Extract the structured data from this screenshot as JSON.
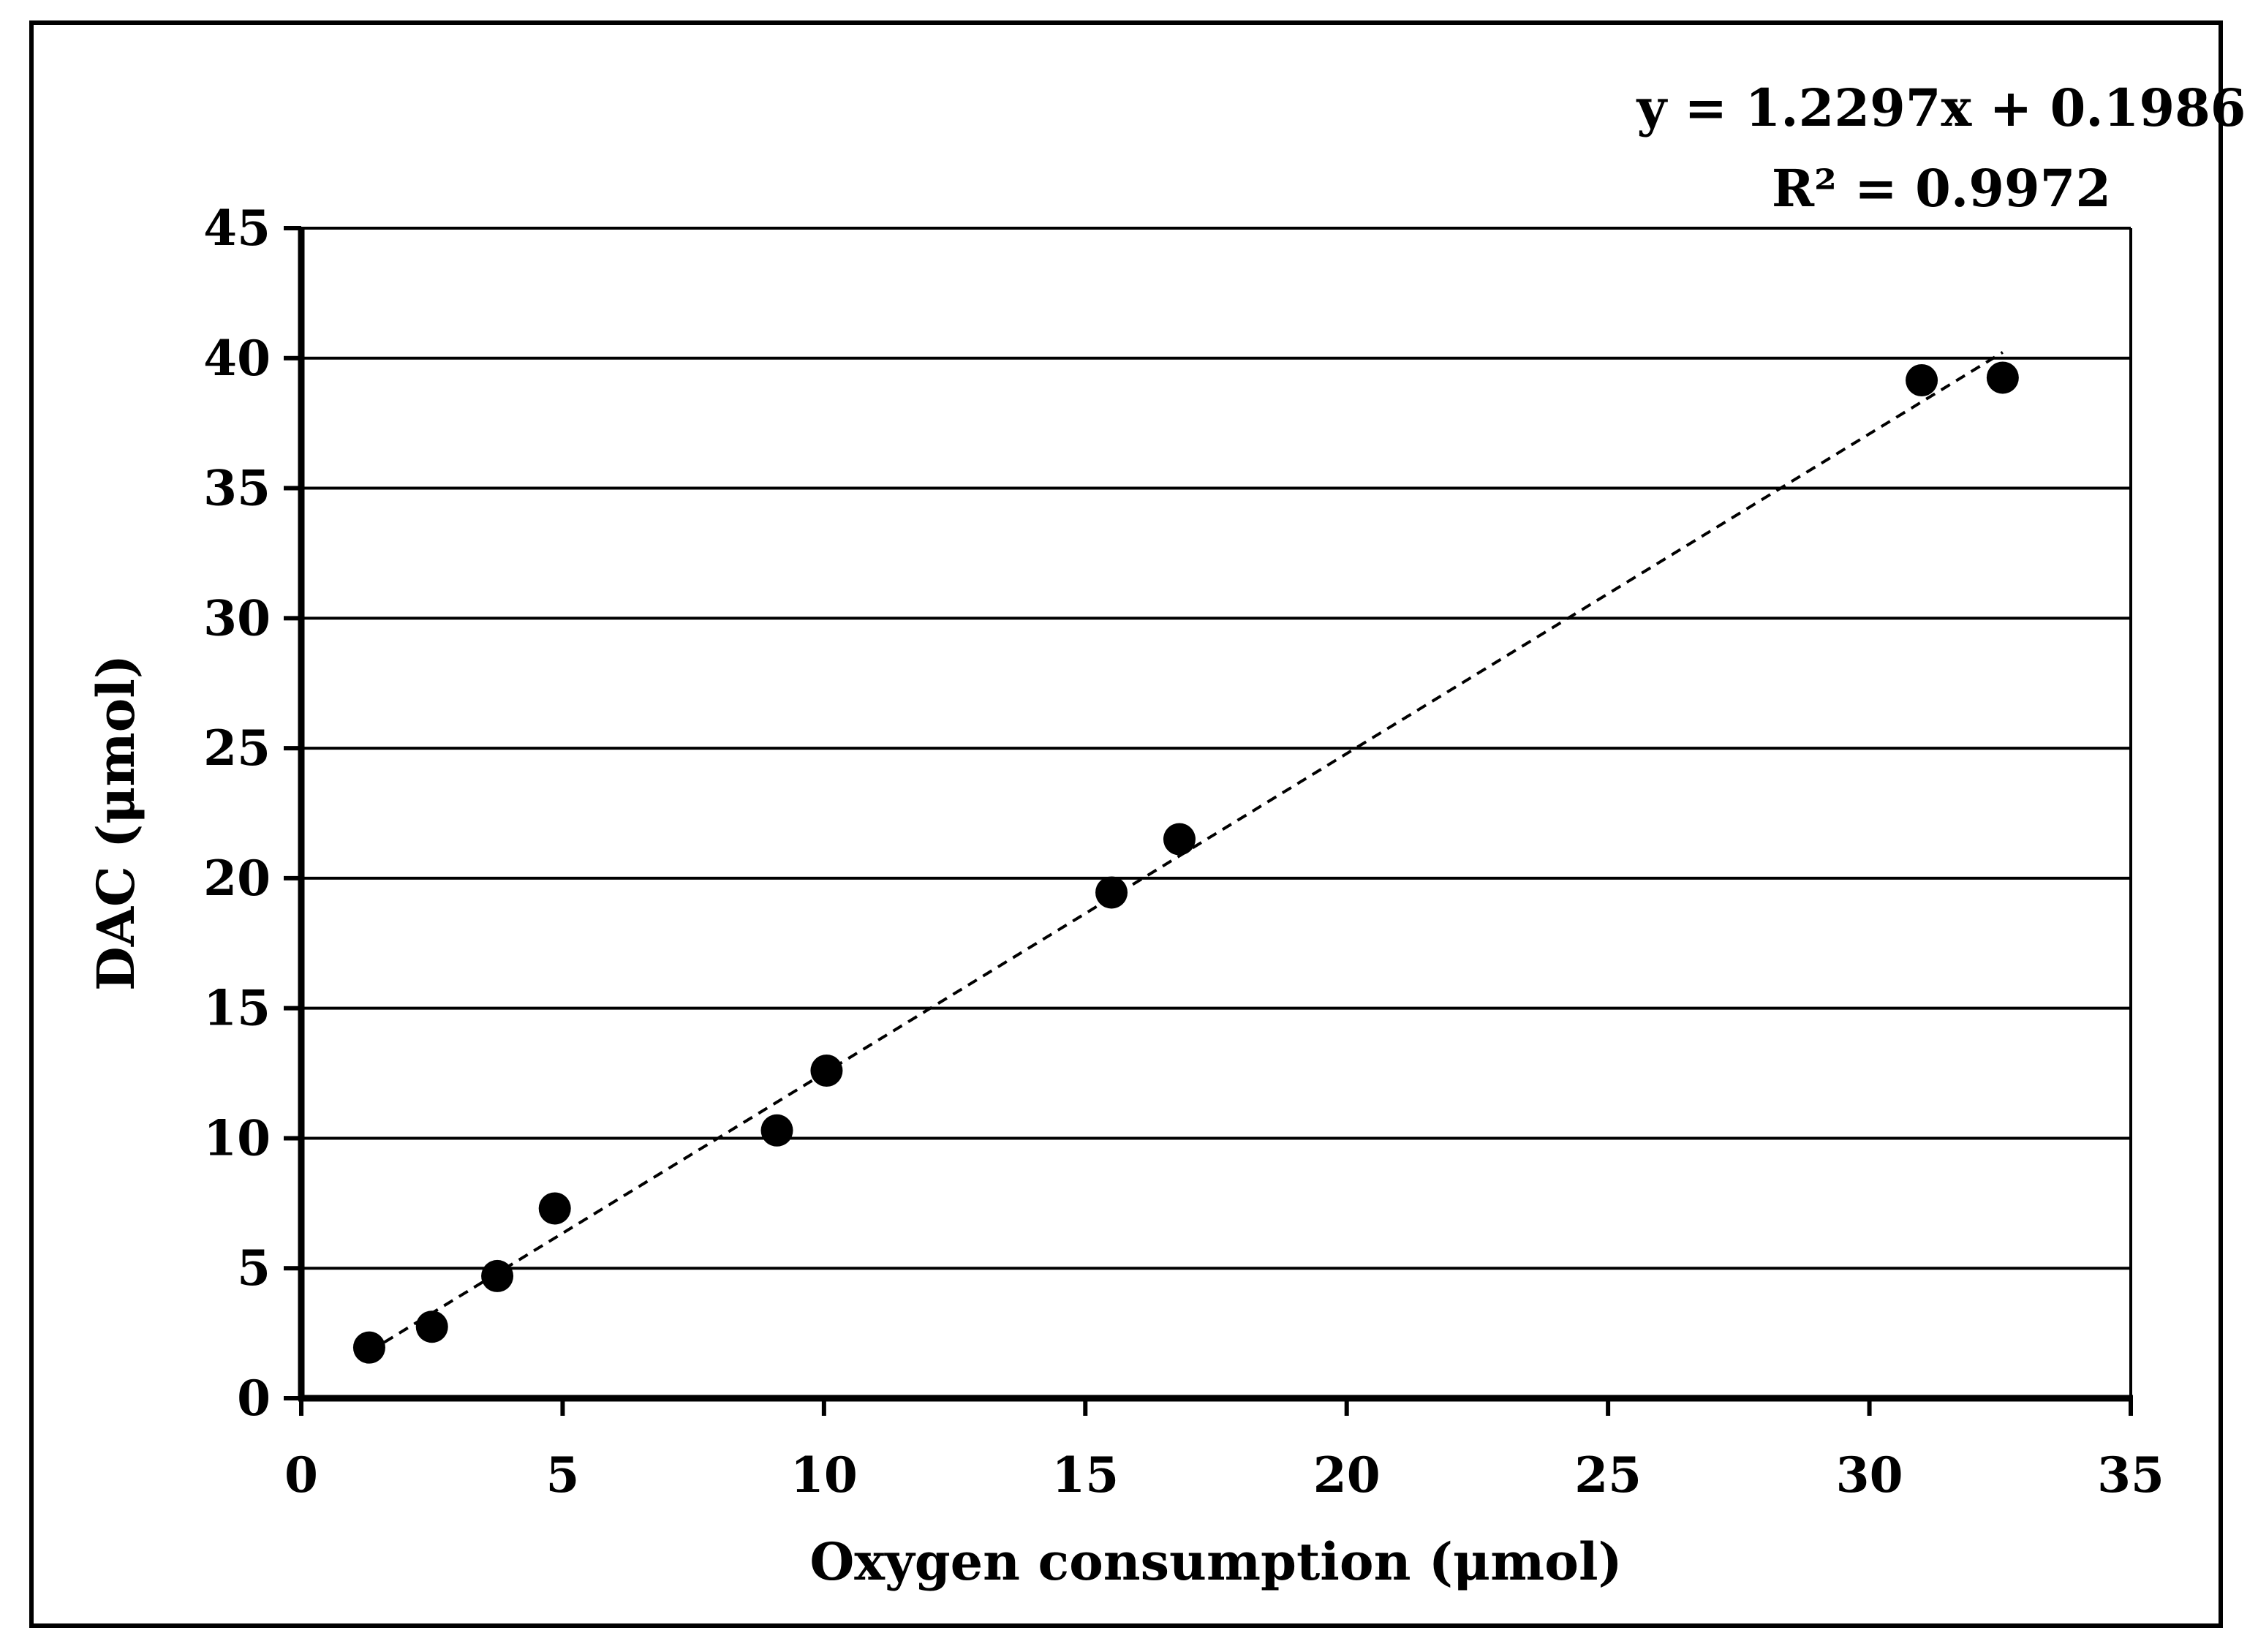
{
  "chart_data": {
    "type": "scatter",
    "title": "",
    "xlabel": "Oxygen consumption (μmol)",
    "ylabel": "DAC (μmol)",
    "xlim": [
      0,
      35
    ],
    "ylim": [
      0,
      45
    ],
    "x_ticks": [
      "0",
      "5",
      "10",
      "15",
      "20",
      "25",
      "30",
      "35"
    ],
    "y_ticks": [
      "0",
      "5",
      "10",
      "15",
      "20",
      "25",
      "30",
      "35",
      "40",
      "45"
    ],
    "grid": "horizontal",
    "legend": "none",
    "series": [
      {
        "name": "DAC vs oxygen consumption",
        "x": [
          1.3,
          2.5,
          3.75,
          4.85,
          9.1,
          10.05,
          15.5,
          16.8,
          31.0,
          32.55
        ],
        "y": [
          1.95,
          2.75,
          4.7,
          7.3,
          10.3,
          12.6,
          19.45,
          21.5,
          39.15,
          39.25
        ]
      }
    ],
    "trendline": {
      "type": "linear",
      "slope": 1.2297,
      "intercept": 0.1986,
      "x_range": [
        1.3,
        32.55
      ],
      "style": "dashed"
    },
    "annotations": {
      "equation": "y = 1.2297x + 0.1986",
      "r_squared": "R² = 0.9972"
    }
  },
  "colors": {
    "marker": "#000000",
    "axis": "#000000",
    "grid": "#000000",
    "background": "#ffffff"
  }
}
